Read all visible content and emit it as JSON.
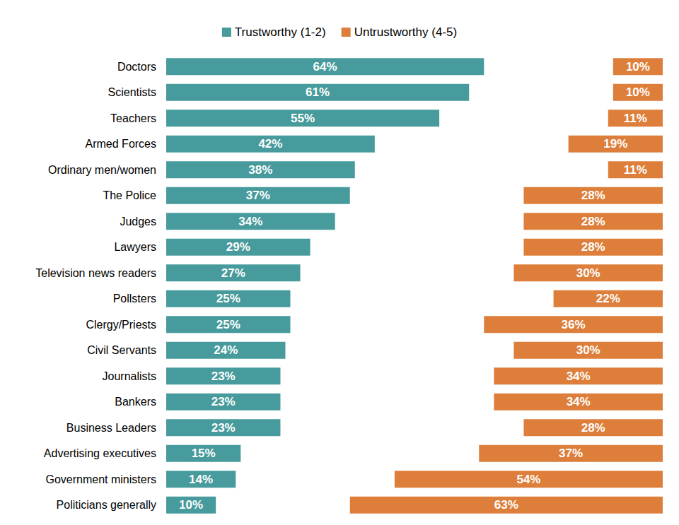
{
  "chart_data": {
    "type": "bar",
    "orientation": "horizontal",
    "categories": [
      "Doctors",
      "Scientists",
      "Teachers",
      "Armed Forces",
      "Ordinary men/women",
      "The Police",
      "Judges",
      "Lawyers",
      "Television news readers",
      "Pollsters",
      "Clergy/Priests",
      "Civil Servants",
      "Journalists",
      "Bankers",
      "Business Leaders",
      "Advertising executives",
      "Government ministers",
      "Politicians generally"
    ],
    "series": [
      {
        "name": "Trustworthy (1-2)",
        "color": "#479b9c",
        "values": [
          64,
          61,
          55,
          42,
          38,
          37,
          34,
          29,
          27,
          25,
          25,
          24,
          23,
          23,
          23,
          15,
          14,
          10
        ],
        "value_labels": [
          "64%",
          "61%",
          "55%",
          "42%",
          "38%",
          "37%",
          "34%",
          "29%",
          "27%",
          "25%",
          "25%",
          "24%",
          "23%",
          "23%",
          "23%",
          "15%",
          "14%",
          "10%"
        ]
      },
      {
        "name": "Untrustworthy (4-5)",
        "color": "#dd7f3b",
        "values": [
          10,
          10,
          11,
          19,
          11,
          28,
          28,
          28,
          30,
          22,
          36,
          30,
          34,
          34,
          28,
          37,
          54,
          63
        ],
        "value_labels": [
          "10%",
          "10%",
          "11%",
          "19%",
          "11%",
          "28%",
          "28%",
          "28%",
          "30%",
          "22%",
          "36%",
          "30%",
          "34%",
          "34%",
          "28%",
          "37%",
          "54%",
          "63%"
        ]
      }
    ],
    "xlim": [
      0,
      100
    ],
    "legend": "top",
    "data_labels": true,
    "tick_labels": "y",
    "grid": false
  }
}
